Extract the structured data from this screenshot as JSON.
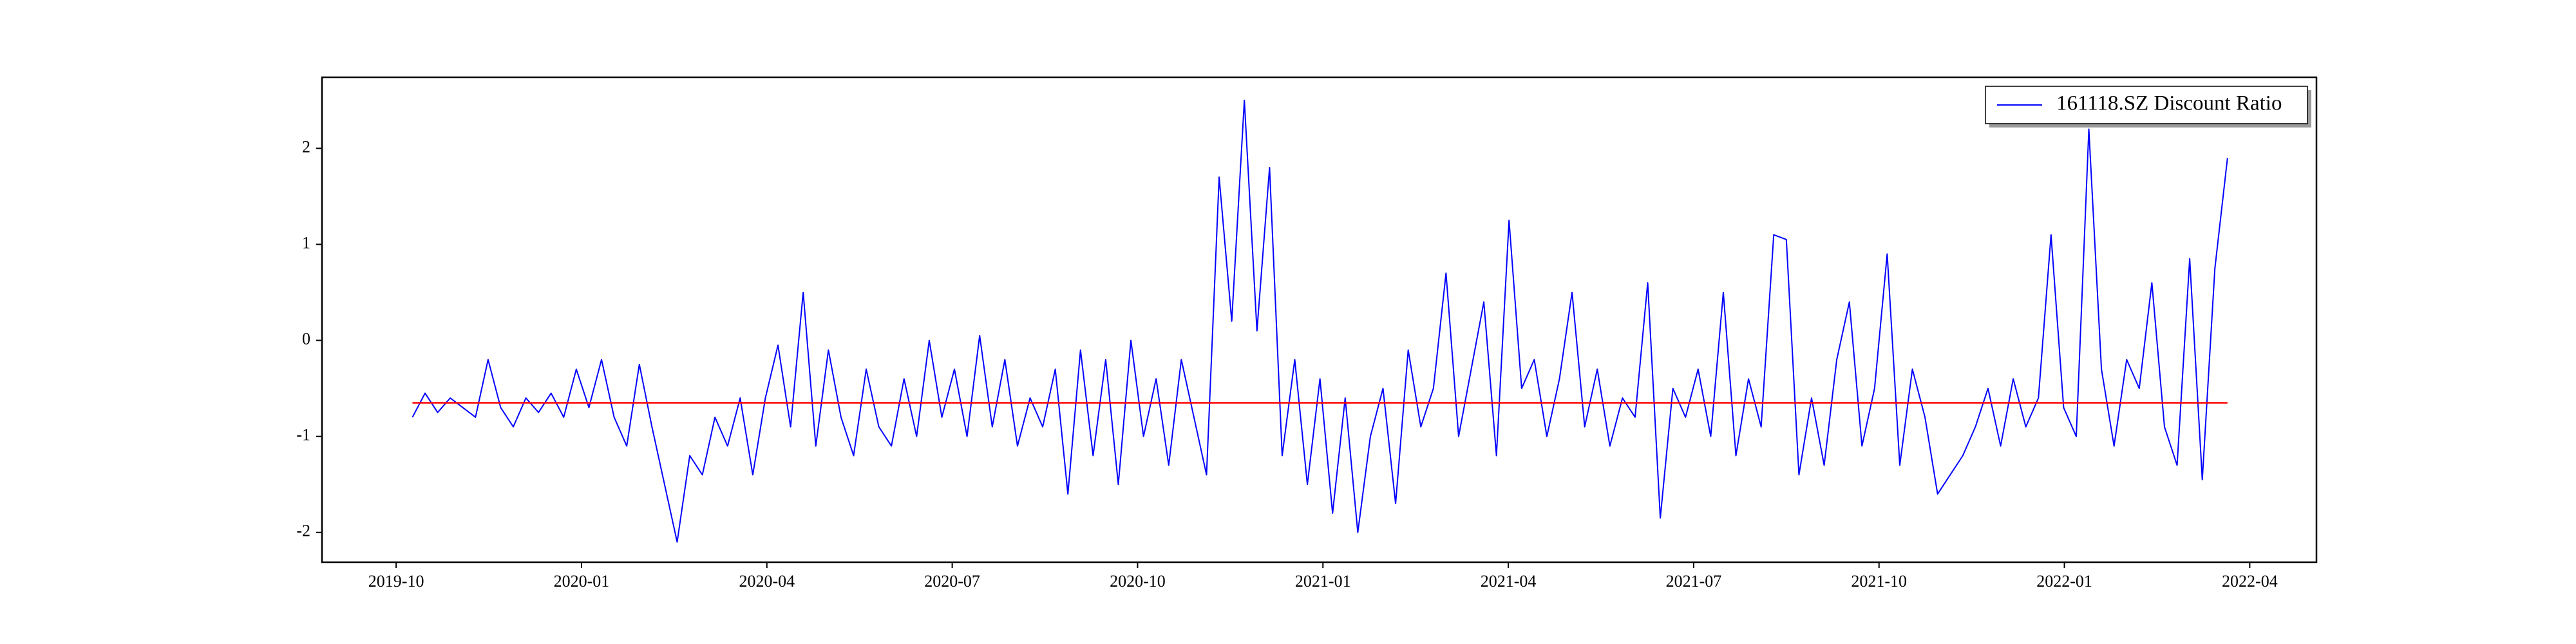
{
  "chart_data": {
    "type": "line",
    "x": [
      2019.772,
      2019.789,
      2019.806,
      2019.823,
      2019.84,
      2019.857,
      2019.874,
      2019.891,
      2019.908,
      2019.925,
      2019.942,
      2019.959,
      2019.976,
      2019.993,
      2020.01,
      2020.027,
      2020.044,
      2020.061,
      2020.078,
      2020.095,
      2020.112,
      2020.129,
      2020.146,
      2020.163,
      2020.18,
      2020.197,
      2020.214,
      2020.231,
      2020.248,
      2020.265,
      2020.282,
      2020.299,
      2020.316,
      2020.333,
      2020.35,
      2020.367,
      2020.384,
      2020.401,
      2020.418,
      2020.435,
      2020.452,
      2020.469,
      2020.486,
      2020.503,
      2020.52,
      2020.537,
      2020.554,
      2020.571,
      2020.588,
      2020.605,
      2020.622,
      2020.639,
      2020.656,
      2020.673,
      2020.69,
      2020.707,
      2020.724,
      2020.741,
      2020.758,
      2020.775,
      2020.792,
      2020.809,
      2020.826,
      2020.843,
      2020.86,
      2020.877,
      2020.894,
      2020.911,
      2020.928,
      2020.945,
      2020.962,
      2020.979,
      2020.996,
      2021.013,
      2021.03,
      2021.047,
      2021.064,
      2021.081,
      2021.098,
      2021.115,
      2021.132,
      2021.149,
      2021.166,
      2021.183,
      2021.2,
      2021.217,
      2021.234,
      2021.251,
      2021.268,
      2021.285,
      2021.302,
      2021.319,
      2021.336,
      2021.353,
      2021.37,
      2021.387,
      2021.404,
      2021.421,
      2021.438,
      2021.455,
      2021.472,
      2021.489,
      2021.506,
      2021.523,
      2021.54,
      2021.557,
      2021.574,
      2021.591,
      2021.608,
      2021.625,
      2021.642,
      2021.659,
      2021.676,
      2021.693,
      2021.71,
      2021.727,
      2021.744,
      2021.761,
      2021.778,
      2021.795,
      2021.812,
      2021.829,
      2021.846,
      2021.863,
      2021.88,
      2021.897,
      2021.914,
      2021.931,
      2021.948,
      2021.965,
      2021.982,
      2021.999,
      2022.016,
      2022.033,
      2022.05,
      2022.067,
      2022.084,
      2022.101,
      2022.118,
      2022.135,
      2022.152,
      2022.169,
      2022.186,
      2022.203,
      2022.22
    ],
    "series": [
      {
        "name": "161118.SZ Discount Ratio",
        "color": "#0000ff",
        "values": [
          -0.8,
          -0.55,
          -0.75,
          -0.6,
          -0.7,
          -0.8,
          -0.2,
          -0.7,
          -0.9,
          -0.6,
          -0.75,
          -0.55,
          -0.8,
          -0.3,
          -0.7,
          -0.2,
          -0.8,
          -1.1,
          -0.25,
          -0.9,
          -1.5,
          -2.1,
          -1.2,
          -1.4,
          -0.8,
          -1.1,
          -0.6,
          -1.4,
          -0.6,
          -0.05,
          -0.9,
          0.5,
          -1.1,
          -0.1,
          -0.8,
          -1.2,
          -0.3,
          -0.9,
          -1.1,
          -0.4,
          -1.0,
          0.0,
          -0.8,
          -0.3,
          -1.0,
          0.05,
          -0.9,
          -0.2,
          -1.1,
          -0.6,
          -0.9,
          -0.3,
          -1.6,
          -0.1,
          -1.2,
          -0.2,
          -1.5,
          0.0,
          -1.0,
          -0.4,
          -1.3,
          -0.2,
          -0.8,
          -1.4,
          1.7,
          0.2,
          2.5,
          0.1,
          1.8,
          -1.2,
          -0.2,
          -1.5,
          -0.4,
          -1.8,
          -0.6,
          -2.0,
          -1.0,
          -0.5,
          -1.7,
          -0.1,
          -0.9,
          -0.5,
          0.7,
          -1.0,
          -0.3,
          0.4,
          -1.2,
          1.25,
          -0.5,
          -0.2,
          -1.0,
          -0.4,
          0.5,
          -0.9,
          -0.3,
          -1.1,
          -0.6,
          -0.8,
          0.6,
          -1.85,
          -0.5,
          -0.8,
          -0.3,
          -1.0,
          0.5,
          -1.2,
          -0.4,
          -0.9,
          1.1,
          1.05,
          -1.4,
          -0.6,
          -1.3,
          -0.2,
          0.4,
          -1.1,
          -0.5,
          0.9,
          -1.3,
          -0.3,
          -0.8,
          -1.6,
          -1.4,
          -1.2,
          -0.9,
          -0.5,
          -1.1,
          -0.4,
          -0.9,
          -0.6,
          1.1,
          -0.7,
          -1.0,
          2.2,
          -0.3,
          -1.1,
          -0.2,
          -0.5,
          0.6,
          -0.9,
          -1.3,
          0.85,
          -1.45,
          0.75,
          1.9
        ]
      }
    ],
    "hline": {
      "value": -0.65,
      "color": "#ff0000"
    },
    "xlim": [
      2019.65,
      2022.34
    ],
    "xticks": [
      {
        "value": 2019.75,
        "label": "2019-10"
      },
      {
        "value": 2020.0,
        "label": "2020-01"
      },
      {
        "value": 2020.25,
        "label": "2020-04"
      },
      {
        "value": 2020.5,
        "label": "2020-07"
      },
      {
        "value": 2020.75,
        "label": "2020-10"
      },
      {
        "value": 2021.0,
        "label": "2021-01"
      },
      {
        "value": 2021.25,
        "label": "2021-04"
      },
      {
        "value": 2021.5,
        "label": "2021-07"
      },
      {
        "value": 2021.75,
        "label": "2021-10"
      },
      {
        "value": 2022.0,
        "label": "2022-01"
      },
      {
        "value": 2022.25,
        "label": "2022-04"
      }
    ],
    "ylim": [
      -2.31,
      2.74
    ],
    "yticks": [
      -2,
      -1,
      0,
      1,
      2
    ],
    "legend": "upper right"
  }
}
